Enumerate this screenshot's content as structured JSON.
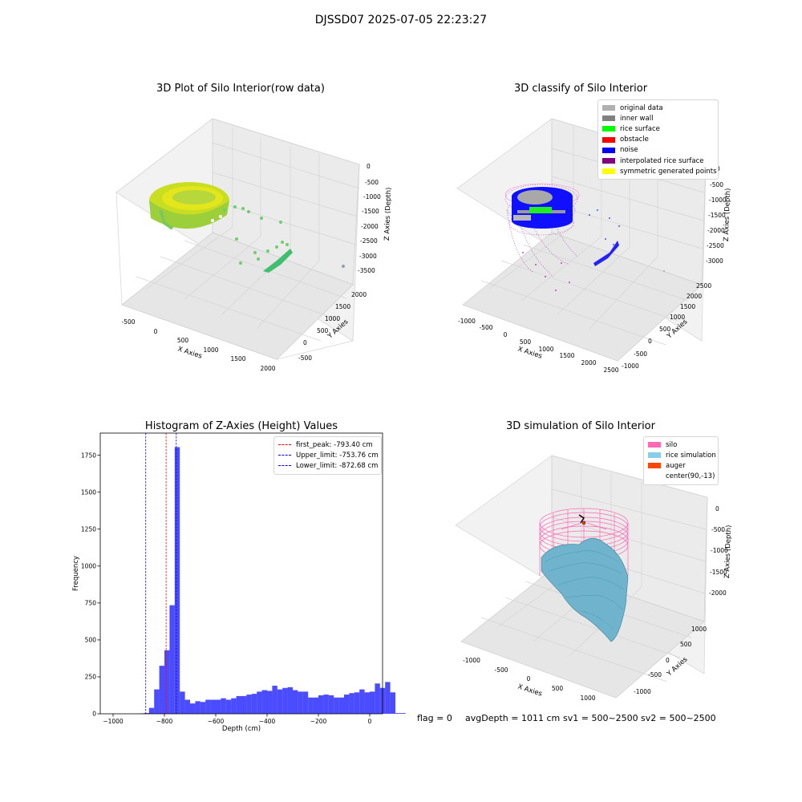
{
  "figure": {
    "suptitle": "DJSSD07 2025-07-05 22:23:27",
    "footer": {
      "flag": "flag = 0",
      "avg_depth": "avgDepth = 1011 cm",
      "sv1": "sv1 = 500~2500",
      "sv2": "sv2 = 500~2500"
    }
  },
  "panels": {
    "raw": {
      "title": "3D Plot of Silo Interior(row data)",
      "xlabel": "X Axies",
      "ylabel": "Y Axies",
      "zlabel": "Z Axies (Depth)",
      "xticks": [
        "-500",
        "0",
        "500",
        "1000",
        "1500",
        "2000"
      ],
      "yticks": [
        "-500",
        "0",
        "500",
        "1000",
        "1500",
        "2000"
      ],
      "zticks": [
        "0",
        "-500",
        "-1000",
        "-1500",
        "-2000",
        "-2500",
        "-3000",
        "-3500"
      ]
    },
    "classify": {
      "title": "3D classify of Silo Interior",
      "xlabel": "X Axies",
      "ylabel": "Y Axies",
      "zlabel": "Z Axies (Depth)",
      "xticks": [
        "-1000",
        "-500",
        "0",
        "500",
        "1000",
        "1500",
        "2000",
        "2500"
      ],
      "yticks": [
        "-1000",
        "-500",
        "0",
        "500",
        "1000",
        "1500",
        "2000",
        "2500"
      ],
      "zticks": [
        "0",
        "-500",
        "-1000",
        "-1500",
        "-2000",
        "-2500",
        "-3000"
      ],
      "legend": [
        {
          "label": "original data",
          "color": "#b0b0b0"
        },
        {
          "label": "inner wall",
          "color": "#808080"
        },
        {
          "label": "rice surface",
          "color": "#00ff00"
        },
        {
          "label": "obstacle",
          "color": "#ff0000"
        },
        {
          "label": "noise",
          "color": "#0000ff"
        },
        {
          "label": "interpolated rice surface",
          "color": "#800080"
        },
        {
          "label": "symmetric generated points",
          "color": "#ffff00"
        }
      ]
    },
    "simulation": {
      "title": "3D simulation of Silo Interior",
      "xlabel": "X Axies",
      "ylabel": "Y Axies",
      "zlabel": "Z Axies (Depth)",
      "xticks": [
        "-1000",
        "-500",
        "0",
        "500",
        "1000"
      ],
      "yticks": [
        "-1000",
        "-500",
        "0",
        "500",
        "1000"
      ],
      "zticks": [
        "0",
        "-500",
        "-1000",
        "-1500",
        "-2000"
      ],
      "legend": [
        {
          "label": "silo",
          "color": "#ff69b4"
        },
        {
          "label": "rice simulation",
          "color": "#87ceeb"
        },
        {
          "label": "auger",
          "color": "#ff4500"
        },
        {
          "label": "center(90,-13)",
          "color": "#ffffff"
        }
      ]
    }
  },
  "chart_data": {
    "type": "bar",
    "title": "Histogram of Z-Axies (Height) Values",
    "xlabel": "Depth (cm)",
    "ylabel": "Frequency",
    "xlim": [
      -1050,
      50
    ],
    "ylim": [
      0,
      1900
    ],
    "xticks": [
      -1000,
      -800,
      -600,
      -400,
      -200,
      0
    ],
    "yticks": [
      0,
      250,
      500,
      750,
      1000,
      1250,
      1500,
      1750
    ],
    "bar_color": "#0000ff",
    "bin_start": -1000,
    "bin_width": 20,
    "values": [
      0,
      0,
      0,
      0,
      0,
      2,
      5,
      40,
      165,
      325,
      430,
      735,
      1805,
      150,
      95,
      70,
      85,
      80,
      95,
      95,
      95,
      105,
      95,
      105,
      120,
      120,
      130,
      135,
      150,
      160,
      155,
      190,
      165,
      175,
      180,
      160,
      150,
      150,
      110,
      110,
      125,
      130,
      125,
      110,
      110,
      130,
      140,
      145,
      165,
      145,
      150,
      205,
      175,
      215,
      145,
      5,
      5,
      0
    ],
    "vlines": [
      {
        "label": "first_peak: -793.40 cm",
        "x": -793.4,
        "color": "#ff0000"
      },
      {
        "label": "Upper_limit: -753.76 cm",
        "x": -753.76,
        "color": "#0000ff"
      },
      {
        "label": "Lower_limit: -872.68 cm",
        "x": -872.68,
        "color": "#0000ff"
      }
    ],
    "legend_position": "upper right"
  }
}
